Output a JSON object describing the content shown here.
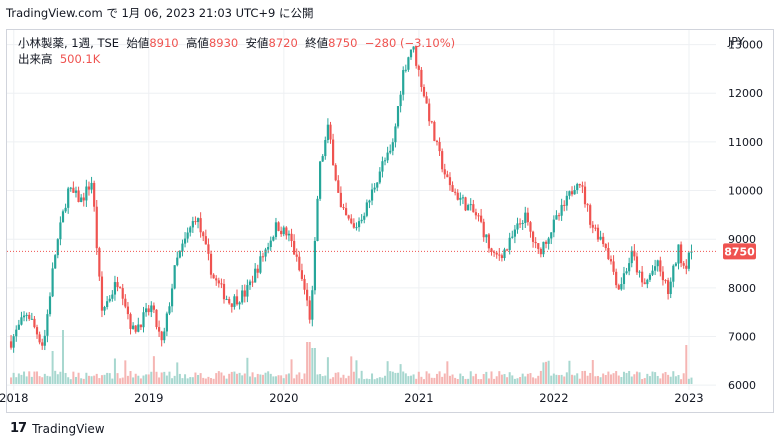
{
  "header": {
    "site": "TradingView.com",
    "caption_rest": "で 1月 06, 2023 21:03 UTC+9 に公開"
  },
  "legend": {
    "symbol": "小林製薬, 1週, TSE",
    "open_label": "始値",
    "open": "8910",
    "high_label": "高値",
    "high": "8930",
    "low_label": "安値",
    "low": "8720",
    "close_label": "終値",
    "close": "8750",
    "change": "−280 (−3.10%)",
    "volume_label": "出来高",
    "volume": "500.1K"
  },
  "footer": {
    "logo": "17",
    "brand": "TradingView"
  },
  "colors": {
    "up": "#26a69a",
    "down": "#ef5350",
    "up_vol": "#a7d7cf",
    "down_vol": "#f5b5b3",
    "grid": "#eef0f3",
    "text": "#131722"
  },
  "chart_data": {
    "type": "candlestick",
    "currency": "JPY",
    "y_ticks": [
      6000,
      7000,
      8000,
      9000,
      10000,
      11000,
      12000,
      13000
    ],
    "ylim": [
      5900,
      13300
    ],
    "x_ticks": [
      {
        "label": "2018",
        "t": 2018.0
      },
      {
        "label": "2019",
        "t": 2019.0
      },
      {
        "label": "2020",
        "t": 2020.0
      },
      {
        "label": "2021",
        "t": 2021.0
      },
      {
        "label": "2022",
        "t": 2022.0
      },
      {
        "label": "2023",
        "t": 2023.0
      }
    ],
    "xlim": [
      2017.95,
      2023.2
    ],
    "last_price": 8750,
    "last_price_label": "8750",
    "anchors": [
      {
        "t": 2017.98,
        "p": 6900
      },
      {
        "t": 2018.1,
        "p": 7500
      },
      {
        "t": 2018.22,
        "p": 6800
      },
      {
        "t": 2018.3,
        "p": 8600
      },
      {
        "t": 2018.4,
        "p": 10000
      },
      {
        "t": 2018.5,
        "p": 9800
      },
      {
        "t": 2018.58,
        "p": 10200
      },
      {
        "t": 2018.65,
        "p": 7500
      },
      {
        "t": 2018.78,
        "p": 8200
      },
      {
        "t": 2018.88,
        "p": 7100
      },
      {
        "t": 2019.02,
        "p": 7600
      },
      {
        "t": 2019.1,
        "p": 6800
      },
      {
        "t": 2019.2,
        "p": 8500
      },
      {
        "t": 2019.35,
        "p": 9500
      },
      {
        "t": 2019.48,
        "p": 8200
      },
      {
        "t": 2019.6,
        "p": 7700
      },
      {
        "t": 2019.72,
        "p": 7900
      },
      {
        "t": 2019.85,
        "p": 8700
      },
      {
        "t": 2019.95,
        "p": 9300
      },
      {
        "t": 2020.05,
        "p": 9000
      },
      {
        "t": 2020.15,
        "p": 8000
      },
      {
        "t": 2020.2,
        "p": 7300
      },
      {
        "t": 2020.26,
        "p": 10400
      },
      {
        "t": 2020.33,
        "p": 11300
      },
      {
        "t": 2020.42,
        "p": 9600
      },
      {
        "t": 2020.52,
        "p": 9200
      },
      {
        "t": 2020.62,
        "p": 9700
      },
      {
        "t": 2020.72,
        "p": 10500
      },
      {
        "t": 2020.8,
        "p": 10800
      },
      {
        "t": 2020.88,
        "p": 12400
      },
      {
        "t": 2020.95,
        "p": 13000
      },
      {
        "t": 2021.02,
        "p": 12200
      },
      {
        "t": 2021.12,
        "p": 11000
      },
      {
        "t": 2021.22,
        "p": 10100
      },
      {
        "t": 2021.35,
        "p": 9700
      },
      {
        "t": 2021.45,
        "p": 9400
      },
      {
        "t": 2021.55,
        "p": 8600
      },
      {
        "t": 2021.65,
        "p": 8800
      },
      {
        "t": 2021.78,
        "p": 9500
      },
      {
        "t": 2021.88,
        "p": 8700
      },
      {
        "t": 2021.98,
        "p": 9200
      },
      {
        "t": 2022.1,
        "p": 9800
      },
      {
        "t": 2022.18,
        "p": 10300
      },
      {
        "t": 2022.28,
        "p": 9300
      },
      {
        "t": 2022.38,
        "p": 8900
      },
      {
        "t": 2022.48,
        "p": 8000
      },
      {
        "t": 2022.58,
        "p": 8700
      },
      {
        "t": 2022.66,
        "p": 8000
      },
      {
        "t": 2022.76,
        "p": 8500
      },
      {
        "t": 2022.85,
        "p": 7900
      },
      {
        "t": 2022.92,
        "p": 8800
      },
      {
        "t": 2022.97,
        "p": 8400
      },
      {
        "t": 2023.02,
        "p": 9000
      },
      {
        "t": 2023.03,
        "p": 8750
      }
    ],
    "volume_spikes": [
      {
        "t": 2018.36,
        "v": 0.9
      },
      {
        "t": 2018.29,
        "v": 0.55
      },
      {
        "t": 2020.18,
        "v": 0.7
      },
      {
        "t": 2020.22,
        "v": 0.6
      },
      {
        "t": 2022.98,
        "v": 0.65
      }
    ]
  }
}
